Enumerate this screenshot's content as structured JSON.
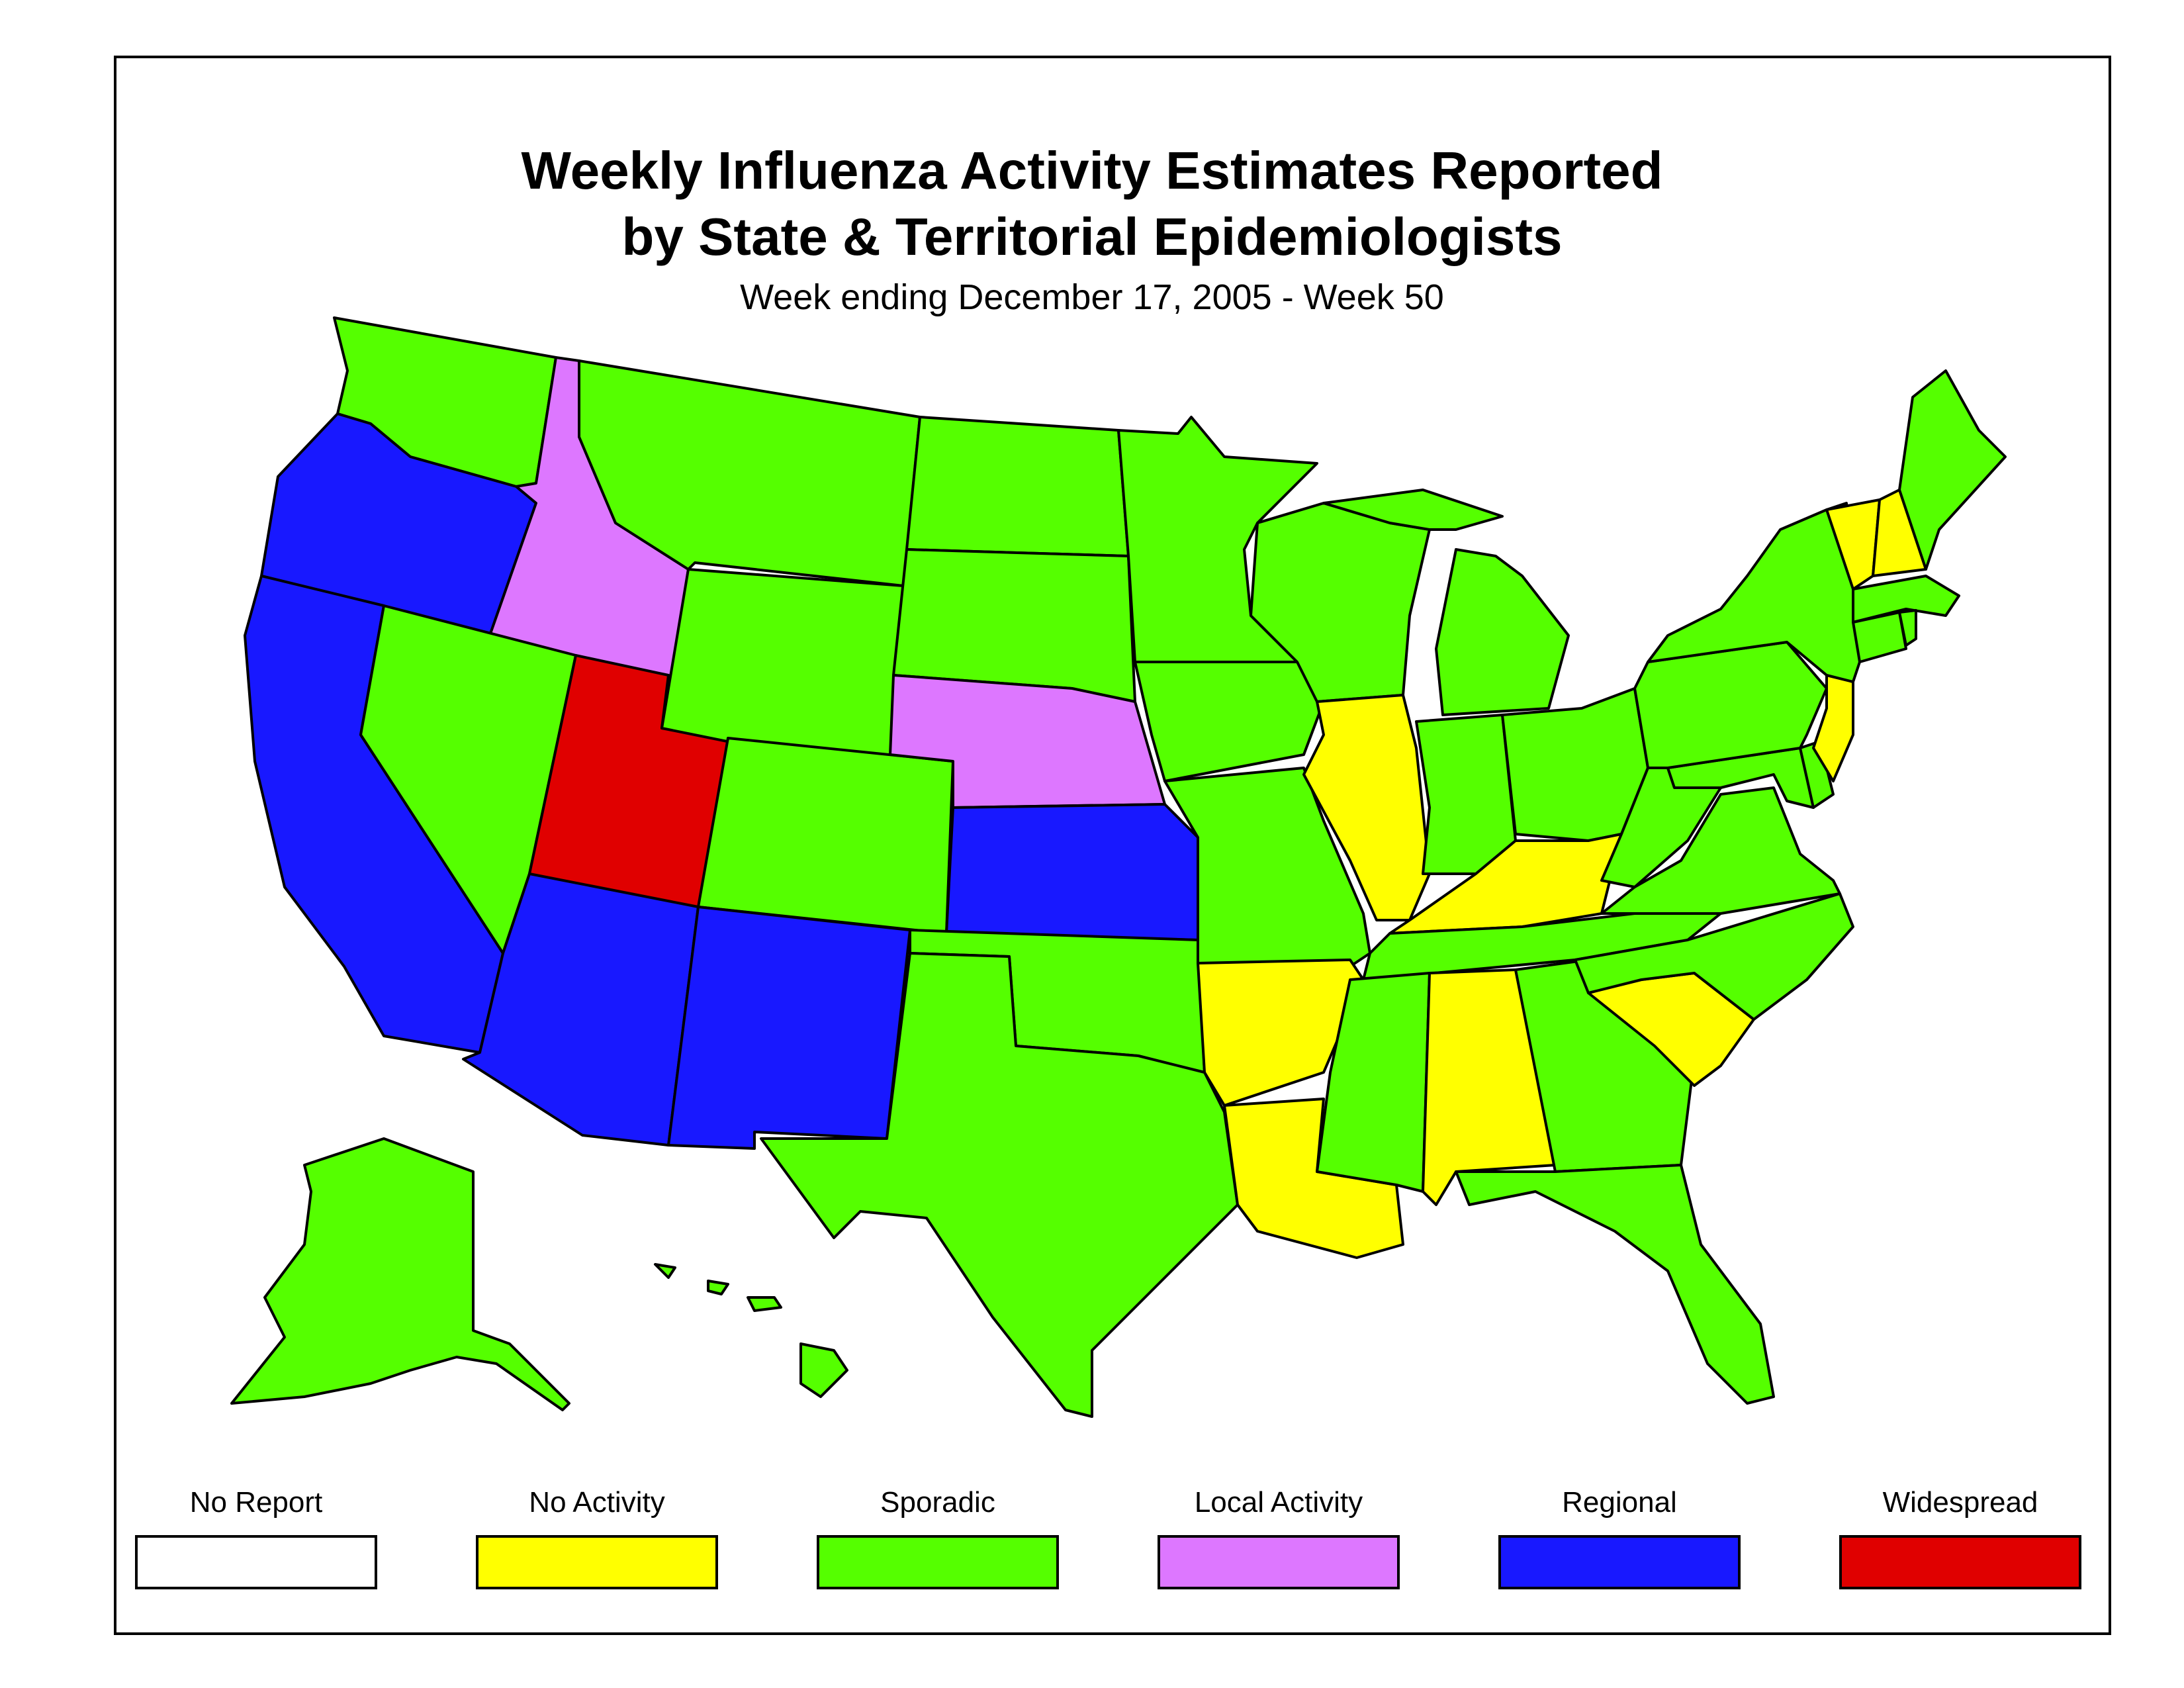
{
  "title_line1": "Weekly Influenza Activity Estimates Reported",
  "title_line2": "by State & Territorial Epidemiologists",
  "subtitle": "Week ending December 17, 2005 - Week 50",
  "legend": [
    {
      "key": "none",
      "label": "No Report",
      "color": "#ffffff"
    },
    {
      "key": "noact",
      "label": "No Activity",
      "color": "#ffff00"
    },
    {
      "key": "sporadic",
      "label": "Sporadic",
      "color": "#55ff00"
    },
    {
      "key": "local",
      "label": "Local Activity",
      "color": "#dd77ff"
    },
    {
      "key": "regional",
      "label": "Regional",
      "color": "#1818ff"
    },
    {
      "key": "widespread",
      "label": "Widespread",
      "color": "#e00000"
    }
  ],
  "states": {
    "WA": "sporadic",
    "OR": "regional",
    "CA": "regional",
    "ID": "local",
    "NV": "sporadic",
    "UT": "widespread",
    "AZ": "regional",
    "MT": "sporadic",
    "WY": "sporadic",
    "CO": "sporadic",
    "NM": "regional",
    "ND": "sporadic",
    "SD": "sporadic",
    "NE": "local",
    "KS": "regional",
    "OK": "sporadic",
    "TX": "sporadic",
    "MN": "sporadic",
    "IA": "sporadic",
    "MO": "sporadic",
    "AR": "noact",
    "LA": "noact",
    "WI": "sporadic",
    "IL": "noact",
    "MI": "sporadic",
    "IN": "sporadic",
    "OH": "sporadic",
    "KY": "noact",
    "TN": "sporadic",
    "MS": "sporadic",
    "AL": "noact",
    "GA": "sporadic",
    "FL": "sporadic",
    "SC": "noact",
    "NC": "sporadic",
    "VA": "sporadic",
    "WV": "sporadic",
    "MD": "sporadic",
    "DE": "sporadic",
    "PA": "sporadic",
    "NJ": "noact",
    "NY": "sporadic",
    "CT": "sporadic",
    "RI": "sporadic",
    "MA": "sporadic",
    "VT": "noact",
    "NH": "noact",
    "ME": "sporadic",
    "AK": "sporadic",
    "HI": "sporadic"
  }
}
